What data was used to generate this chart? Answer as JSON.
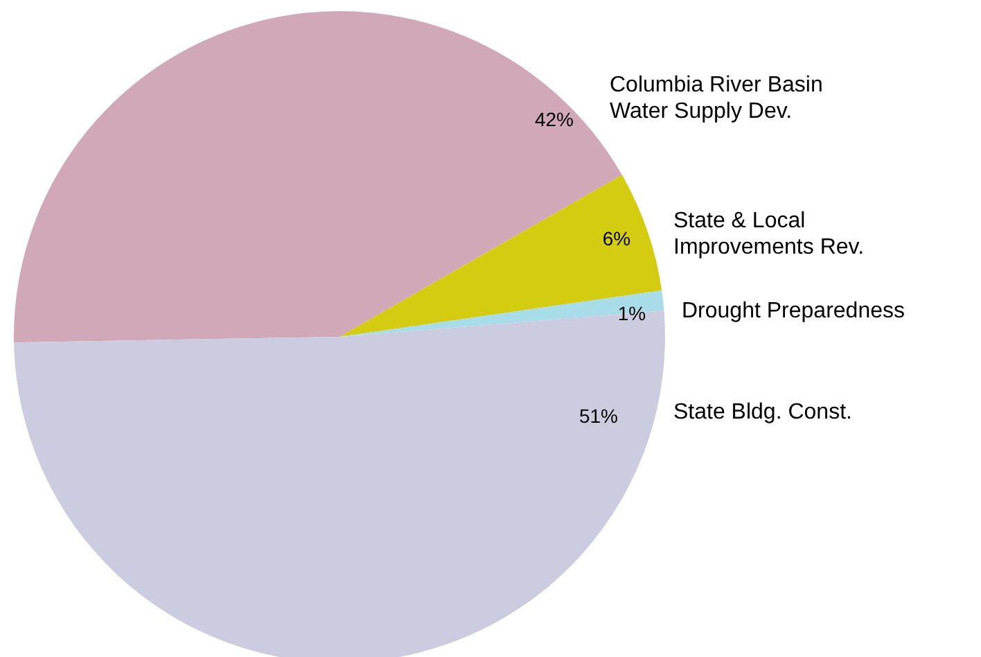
{
  "chart_data": {
    "type": "pie",
    "categories": [
      "Columbia River Basin\nWater Supply Dev.",
      "State & Local\nImprovements Rev.",
      "Drought Preparedness",
      "State Bldg. Const."
    ],
    "values": [
      42,
      6,
      1,
      51
    ],
    "value_labels": [
      "42%",
      "6%",
      "1%",
      "51%"
    ],
    "colors": [
      "#d0a8b8",
      "#d4cc10",
      "#a8dce8",
      "#cccce0"
    ]
  }
}
